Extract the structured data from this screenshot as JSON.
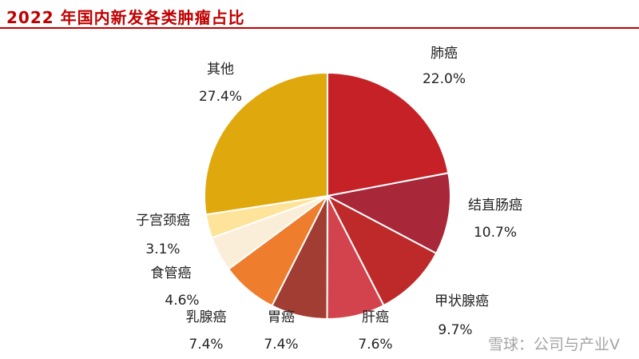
{
  "page_title": "2022 年国内新发各类肿瘤占比",
  "watermark": "雪球：公司与产业V",
  "chart_data": {
    "type": "pie",
    "title": "2022 年国内新发各类肿瘤占比",
    "unit": "%",
    "slices": [
      {
        "name": "肺癌",
        "value": 22.0,
        "label": "22.0%",
        "color": "#c62127"
      },
      {
        "name": "结直肠癌",
        "value": 10.7,
        "label": "10.7%",
        "color": "#a8283a"
      },
      {
        "name": "甲状腺癌",
        "value": 9.7,
        "label": "9.7%",
        "color": "#be2a2a"
      },
      {
        "name": "肝癌",
        "value": 7.6,
        "label": "7.6%",
        "color": "#d3434d"
      },
      {
        "name": "胃癌",
        "value": 7.4,
        "label": "7.4%",
        "color": "#a23d33"
      },
      {
        "name": "乳腺癌",
        "value": 7.4,
        "label": "7.4%",
        "color": "#ee7d2d"
      },
      {
        "name": "食管癌",
        "value": 4.6,
        "label": "4.6%",
        "color": "#fbeed8"
      },
      {
        "name": "子宫颈癌",
        "value": 3.1,
        "label": "3.1%",
        "color": "#fde49a"
      },
      {
        "name": "其他",
        "value": 27.4,
        "label": "27.4%",
        "color": "#dfa90d"
      }
    ]
  }
}
